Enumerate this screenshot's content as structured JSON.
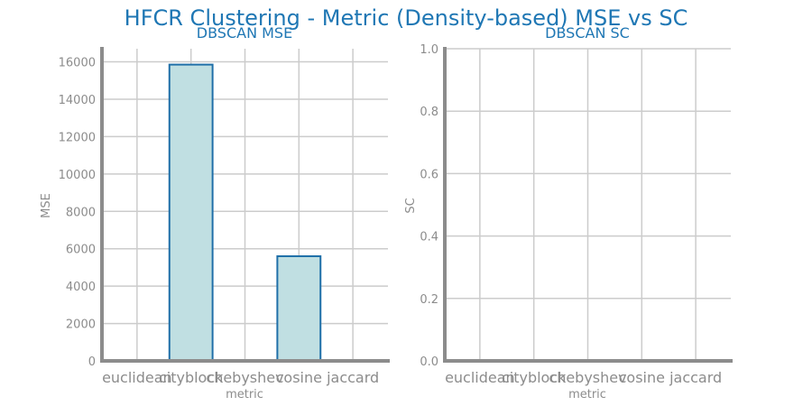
{
  "figure": {
    "title": "HFCR Clustering - Metric (Density-based) MSE vs SC"
  },
  "colors": {
    "title": "#1f77b4",
    "bar_fill": "#c0dfe2",
    "bar_edge": "#1f6fa8",
    "grid": "#cccccc",
    "axis": "#8c8c8c"
  },
  "chart_data": [
    {
      "type": "bar",
      "title": "DBSCAN MSE",
      "xlabel": "metric",
      "ylabel": "MSE",
      "categories": [
        "euclidean",
        "cityblock",
        "chebyshev",
        "cosine",
        "jaccard"
      ],
      "values": [
        null,
        15850,
        null,
        5600,
        null
      ],
      "ylim": [
        0,
        16700
      ],
      "yticks": [
        0,
        2000,
        4000,
        6000,
        8000,
        10000,
        12000,
        14000,
        16000
      ],
      "ytick_labels": [
        "0",
        "2000",
        "4000",
        "6000",
        "8000",
        "10000",
        "12000",
        "14000",
        "16000"
      ],
      "grid": true
    },
    {
      "type": "bar",
      "title": "DBSCAN SC",
      "xlabel": "metric",
      "ylabel": "SC",
      "categories": [
        "euclidean",
        "cityblock",
        "chebyshev",
        "cosine",
        "jaccard"
      ],
      "values": [
        null,
        null,
        null,
        null,
        null
      ],
      "ylim": [
        0,
        1.0
      ],
      "yticks": [
        0.0,
        0.2,
        0.4,
        0.6,
        0.8,
        1.0
      ],
      "ytick_labels": [
        "0.0",
        "0.2",
        "0.4",
        "0.6",
        "0.8",
        "1.0"
      ],
      "grid": true
    }
  ]
}
